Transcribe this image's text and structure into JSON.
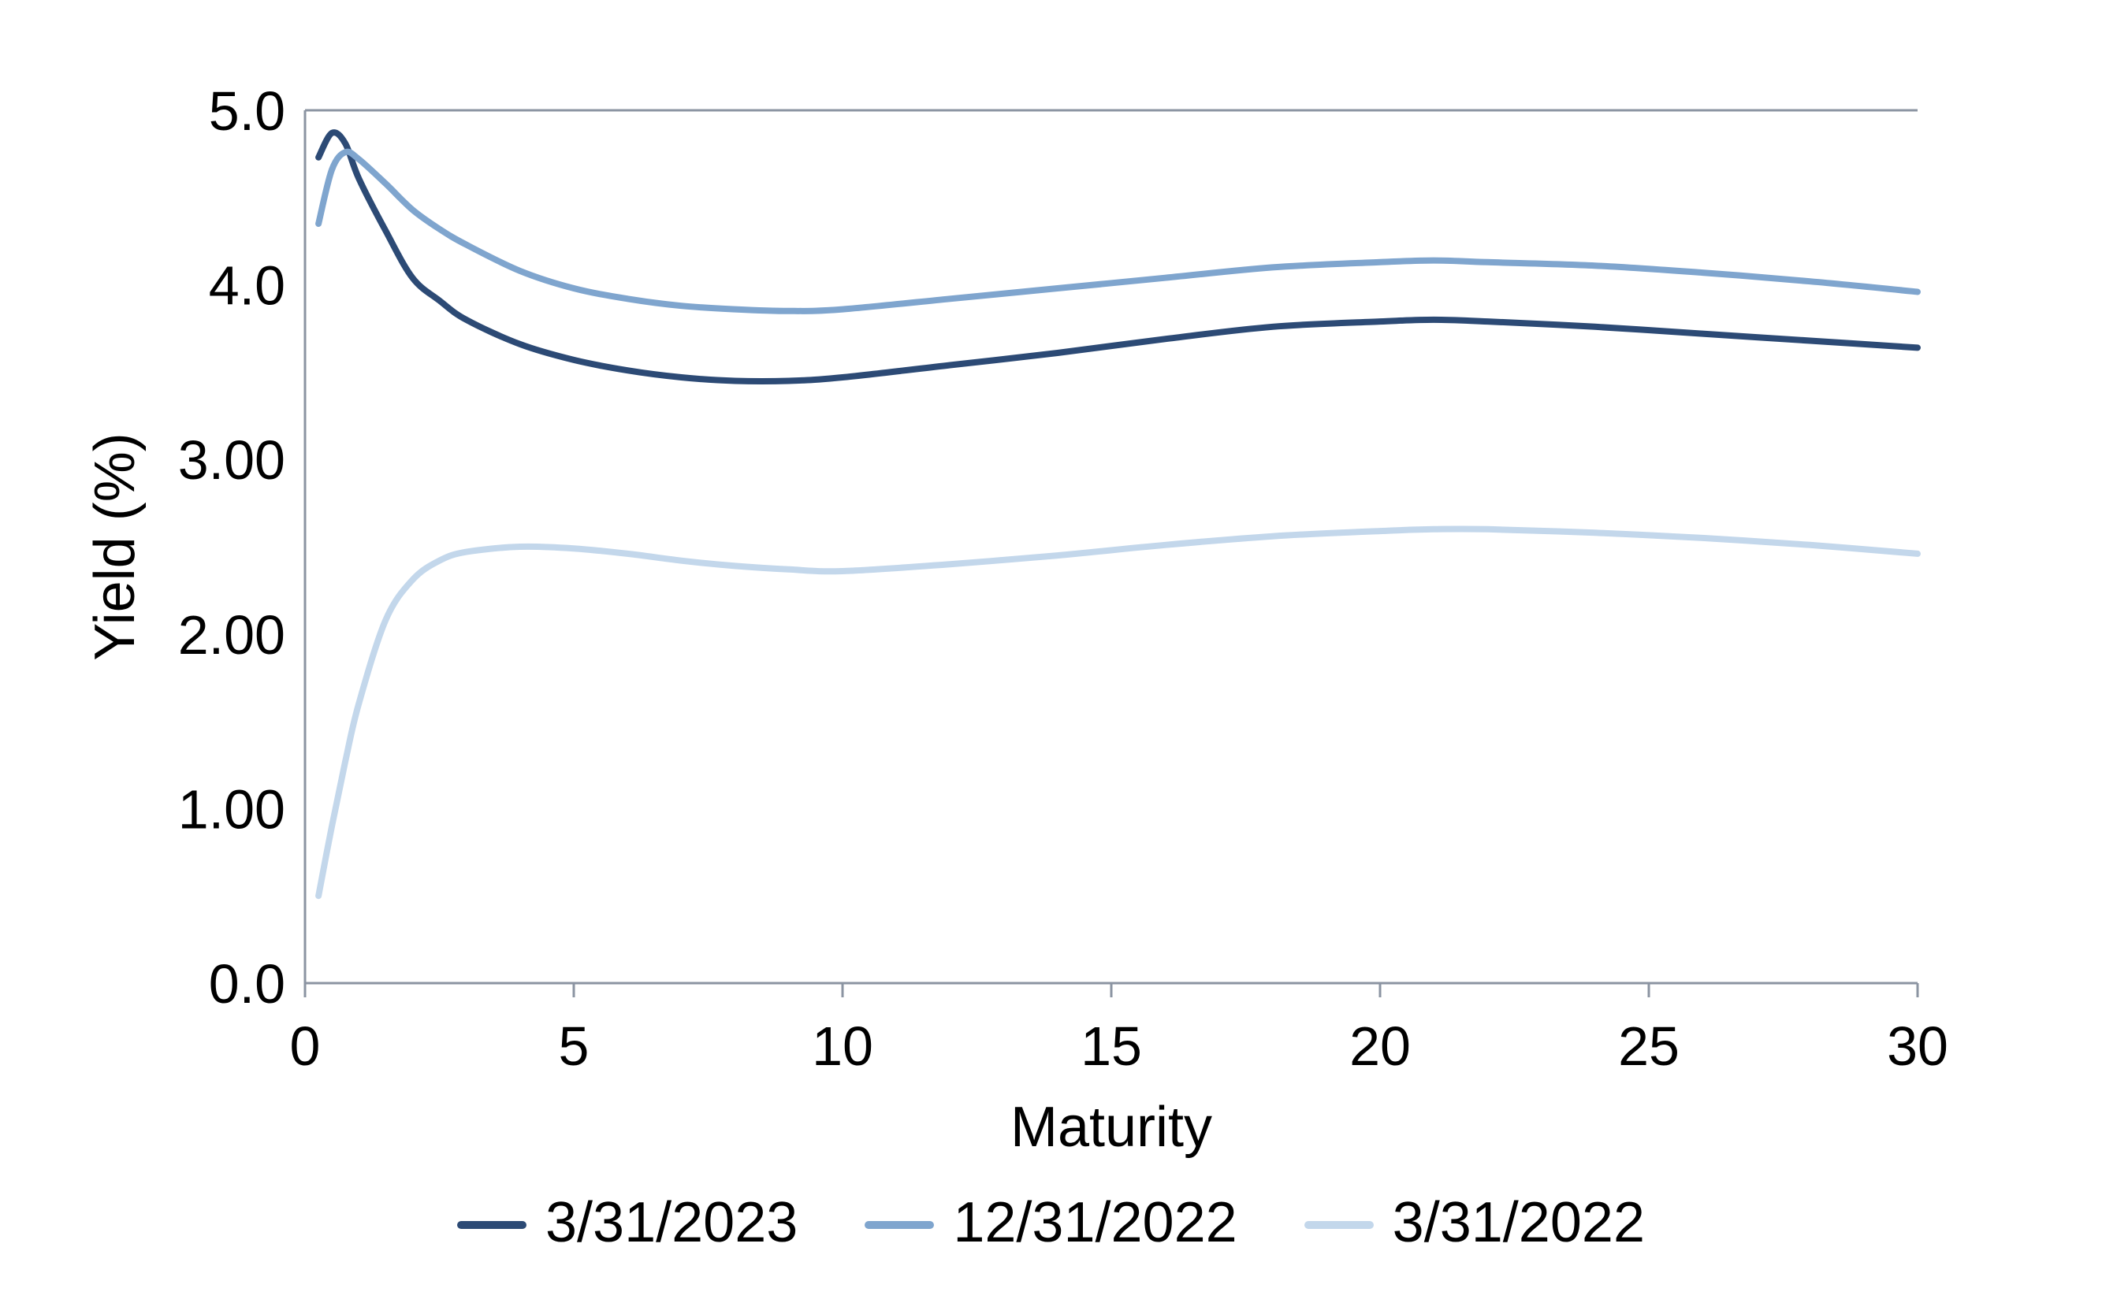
{
  "chart_data": {
    "type": "line",
    "title": "",
    "xlabel": "Maturity",
    "ylabel": "Yield (%)",
    "xlim": [
      0,
      30
    ],
    "ylim": [
      0,
      5
    ],
    "x_ticks": [
      {
        "v": 0,
        "label": "0"
      },
      {
        "v": 5,
        "label": "5"
      },
      {
        "v": 10,
        "label": "10"
      },
      {
        "v": 15,
        "label": "15"
      },
      {
        "v": 20,
        "label": "20"
      },
      {
        "v": 25,
        "label": "25"
      },
      {
        "v": 30,
        "label": "30"
      }
    ],
    "y_ticks": [
      {
        "v": 0,
        "label": "0.0"
      },
      {
        "v": 1,
        "label": "1.00"
      },
      {
        "v": 2,
        "label": "2.00"
      },
      {
        "v": 3,
        "label": "3.00"
      },
      {
        "v": 4,
        "label": "4.0"
      },
      {
        "v": 5,
        "label": "5.0"
      }
    ],
    "grid": "top border, left y-axis and bottom x-axis only; no interior gridlines",
    "legend_position": "bottom",
    "axis_color": "#8B94A2",
    "text_color": "#000000",
    "series": [
      {
        "name": "3/31/2023",
        "color": "#2C4A75",
        "points": [
          [
            0.25,
            4.73
          ],
          [
            0.5,
            4.87
          ],
          [
            0.75,
            4.81
          ],
          [
            1,
            4.61
          ],
          [
            1.5,
            4.31
          ],
          [
            2,
            4.04
          ],
          [
            2.5,
            3.91
          ],
          [
            3,
            3.8
          ],
          [
            4,
            3.66
          ],
          [
            5,
            3.57
          ],
          [
            6,
            3.51
          ],
          [
            7,
            3.47
          ],
          [
            8,
            3.45
          ],
          [
            9,
            3.45
          ],
          [
            10,
            3.47
          ],
          [
            12,
            3.54
          ],
          [
            14,
            3.61
          ],
          [
            16,
            3.69
          ],
          [
            18,
            3.76
          ],
          [
            20,
            3.79
          ],
          [
            21,
            3.8
          ],
          [
            22,
            3.79
          ],
          [
            24,
            3.76
          ],
          [
            26,
            3.72
          ],
          [
            28,
            3.68
          ],
          [
            30,
            3.64
          ]
        ]
      },
      {
        "name": "12/31/2022",
        "color": "#7FA5CE",
        "points": [
          [
            0.25,
            4.35
          ],
          [
            0.5,
            4.66
          ],
          [
            0.75,
            4.76
          ],
          [
            1,
            4.72
          ],
          [
            1.5,
            4.58
          ],
          [
            2,
            4.43
          ],
          [
            2.5,
            4.32
          ],
          [
            3,
            4.23
          ],
          [
            4,
            4.08
          ],
          [
            5,
            3.98
          ],
          [
            6,
            3.92
          ],
          [
            7,
            3.88
          ],
          [
            8,
            3.86
          ],
          [
            9,
            3.85
          ],
          [
            10,
            3.86
          ],
          [
            12,
            3.92
          ],
          [
            14,
            3.98
          ],
          [
            16,
            4.04
          ],
          [
            18,
            4.1
          ],
          [
            20,
            4.13
          ],
          [
            21,
            4.14
          ],
          [
            22,
            4.13
          ],
          [
            24,
            4.11
          ],
          [
            26,
            4.07
          ],
          [
            28,
            4.02
          ],
          [
            30,
            3.96
          ]
        ]
      },
      {
        "name": "3/31/2022",
        "color": "#C3D7EB",
        "points": [
          [
            0.25,
            0.5
          ],
          [
            0.5,
            0.9
          ],
          [
            0.75,
            1.27
          ],
          [
            1,
            1.6
          ],
          [
            1.5,
            2.08
          ],
          [
            2,
            2.31
          ],
          [
            2.5,
            2.42
          ],
          [
            3,
            2.47
          ],
          [
            4,
            2.5
          ],
          [
            5,
            2.49
          ],
          [
            6,
            2.46
          ],
          [
            7,
            2.42
          ],
          [
            8,
            2.39
          ],
          [
            9,
            2.37
          ],
          [
            10,
            2.36
          ],
          [
            12,
            2.4
          ],
          [
            14,
            2.45
          ],
          [
            16,
            2.51
          ],
          [
            18,
            2.56
          ],
          [
            20,
            2.59
          ],
          [
            21,
            2.6
          ],
          [
            22,
            2.6
          ],
          [
            24,
            2.58
          ],
          [
            26,
            2.55
          ],
          [
            28,
            2.51
          ],
          [
            30,
            2.46
          ]
        ]
      }
    ]
  }
}
